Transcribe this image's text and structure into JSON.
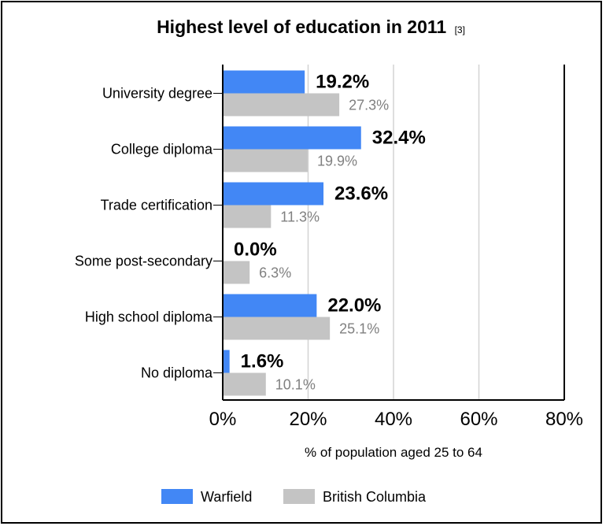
{
  "chart_data": {
    "type": "bar",
    "orientation": "horizontal",
    "title": "Highest level of education in 2011",
    "title_ref": "[3]",
    "xlabel": "% of population aged 25 to 64",
    "ylabel": "",
    "xlim": [
      0,
      80
    ],
    "x_ticks": [
      "0%",
      "20%",
      "40%",
      "60%",
      "80%"
    ],
    "grid": true,
    "legend_position": "bottom",
    "categories": [
      "University degree",
      "College diploma",
      "Trade certification",
      "Some post-secondary",
      "High school diploma",
      "No diploma"
    ],
    "series": [
      {
        "name": "Warfield",
        "color": "#4287f5",
        "values": [
          19.2,
          32.4,
          23.6,
          0.0,
          22.0,
          1.6
        ],
        "labels": [
          "19.2%",
          "32.4%",
          "23.6%",
          "0.0%",
          "22.0%",
          "1.6%"
        ]
      },
      {
        "name": "British Columbia",
        "color": "#c4c4c4",
        "values": [
          27.3,
          19.9,
          11.3,
          6.3,
          25.1,
          10.1
        ],
        "labels": [
          "27.3%",
          "19.9%",
          "11.3%",
          "6.3%",
          "25.1%",
          "10.1%"
        ]
      }
    ]
  }
}
